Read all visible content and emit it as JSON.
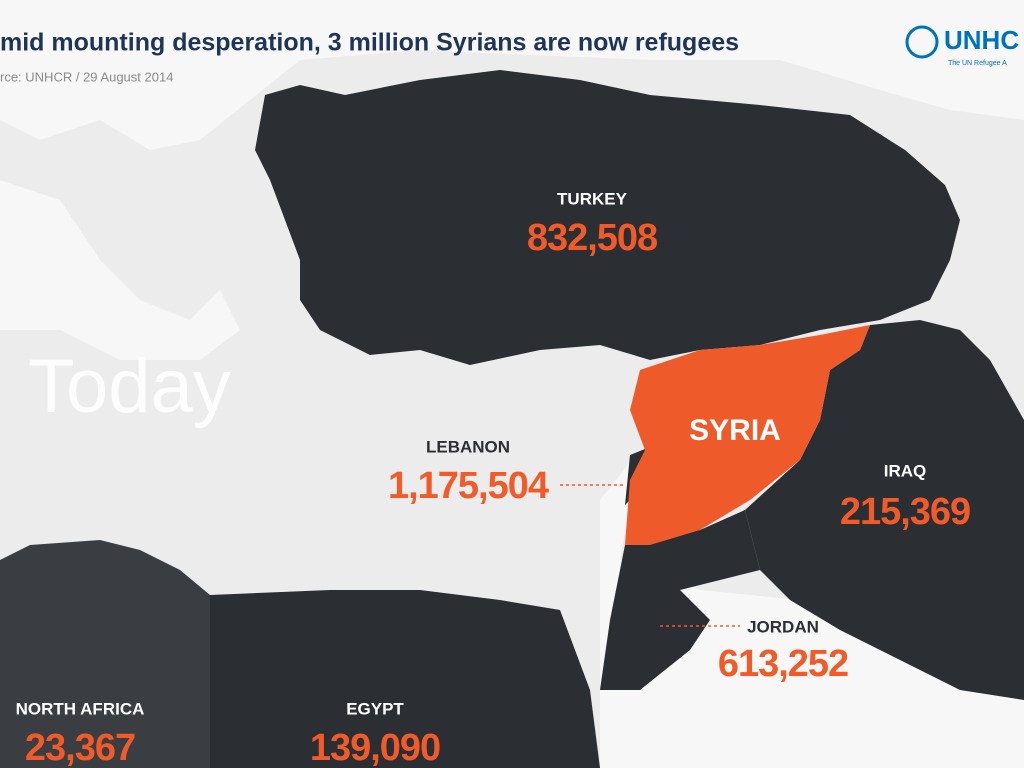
{
  "header": {
    "title": "mid mounting desperation, 3 million Syrians are now refugees",
    "source": "rce: UNHCR / 29 August 2014",
    "logo": "UNHC",
    "logo_tagline": "The UN Refugee A"
  },
  "overlay": "Today",
  "countries": [
    {
      "label": "TURKEY",
      "refugees": "832,508"
    },
    {
      "label": "SYRIA"
    },
    {
      "label": "LEBANON",
      "refugees": "1,175,504"
    },
    {
      "label": "IRAQ",
      "refugees": "215,369"
    },
    {
      "label": "JORDAN",
      "refugees": "613,252"
    },
    {
      "label": "NORTH AFRICA",
      "refugees": "23,367"
    },
    {
      "label": "EGYPT",
      "refugees": "139,090"
    }
  ]
}
